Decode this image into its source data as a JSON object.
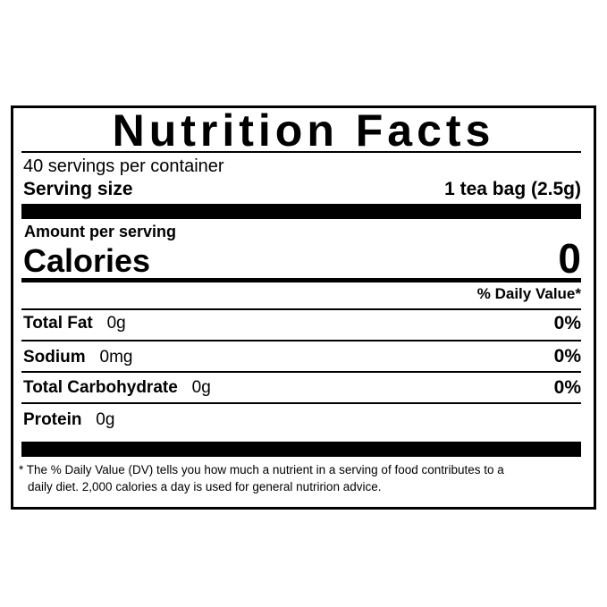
{
  "label": {
    "title": "Nutrition Facts",
    "servings_per_container": "40 servings per container",
    "serving_size_label": "Serving size",
    "serving_size_value": "1 tea bag (2.5g)",
    "amount_per_serving": "Amount per serving",
    "calories_label": "Calories",
    "calories_value": "0",
    "daily_value_header": "% Daily Value*",
    "nutrients": [
      {
        "name": "Total Fat",
        "amount": "0g",
        "dv": "0%"
      },
      {
        "name": "Sodium",
        "amount": "0mg",
        "dv": "0%"
      },
      {
        "name": "Total Carbohydrate",
        "amount": "0g",
        "dv": "0%"
      },
      {
        "name": "Protein",
        "amount": "0g",
        "dv": ""
      }
    ],
    "footnote_line1": "* The % Daily Value (DV) tells you how much a nutrient in a serving of food contributes to a",
    "footnote_line2": "daily diet. 2,000 calories a day is used for general nutririon advice."
  }
}
